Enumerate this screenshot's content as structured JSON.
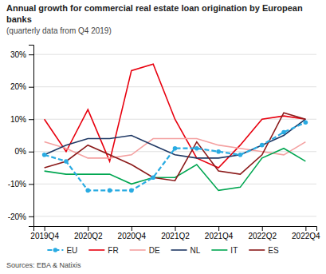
{
  "chart_data": {
    "type": "line",
    "title": "Annual growth for commercial real estate loan origination by European banks",
    "subtitle": "(quarterly data from Q4 2019)",
    "source": "Sources: EBA & Natixis",
    "categories": [
      "2019Q4",
      null,
      "2020Q2",
      null,
      "2020Q4",
      null,
      "2021Q2",
      null,
      "2021Q4",
      null,
      "2022Q2",
      null,
      "2022Q4"
    ],
    "series": [
      {
        "name": "EU",
        "color": "#29ABE2",
        "line_style": "dashed",
        "marker": "circle",
        "values": [
          -1,
          -3,
          -12,
          -12,
          -12,
          -8,
          1,
          1,
          0,
          -1,
          2,
          6,
          9
        ]
      },
      {
        "name": "FR",
        "color": "#E8000E",
        "line_style": "solid",
        "values": [
          10,
          0,
          13,
          -3,
          25,
          27,
          10,
          -2,
          -5,
          2,
          10,
          11,
          10
        ]
      },
      {
        "name": "DE",
        "color": "#F4A0A0",
        "line_style": "solid",
        "values": [
          3,
          1,
          -2,
          -2,
          -1,
          4,
          4,
          4,
          2,
          1,
          0,
          -1,
          3
        ]
      },
      {
        "name": "NL",
        "color": "#1F3864",
        "line_style": "solid",
        "values": [
          -1,
          2,
          4,
          4,
          5,
          2,
          -1,
          -2,
          -2,
          -1,
          2,
          5,
          10
        ]
      },
      {
        "name": "IT",
        "color": "#00A651",
        "line_style": "solid",
        "values": [
          -6,
          -7,
          -7,
          -7,
          -10,
          -8,
          -8,
          -4,
          -12,
          -11,
          -2,
          1,
          -3
        ]
      },
      {
        "name": "ES",
        "color": "#8B1A1A",
        "line_style": "solid",
        "values": [
          -5,
          -3,
          2,
          -1,
          -4,
          -8,
          -9,
          3,
          -6,
          -7,
          -1,
          12,
          10
        ]
      }
    ],
    "ylim": [
      -23,
      33
    ],
    "yticks": [
      {
        "value": -20,
        "label": "-20%"
      },
      {
        "value": -10,
        "label": "-10%"
      },
      {
        "value": 0,
        "label": "0%"
      },
      {
        "value": 10,
        "label": "10%"
      },
      {
        "value": 20,
        "label": "20%"
      },
      {
        "value": 30,
        "label": "30%"
      }
    ],
    "grid": true,
    "legend": "bottom"
  }
}
